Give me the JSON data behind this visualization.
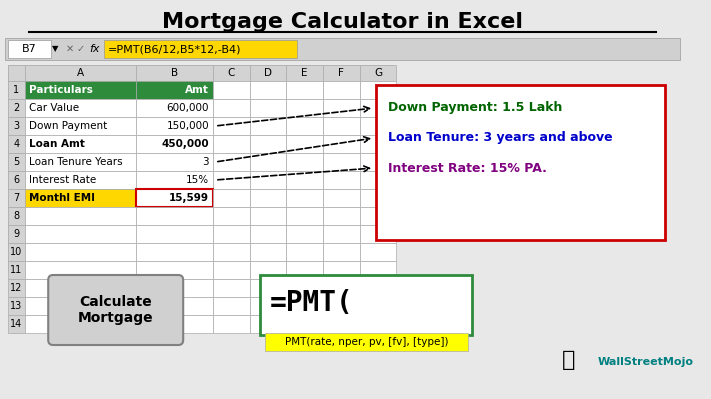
{
  "title": "Mortgage Calculator in Excel",
  "formula_bar_cell": "B7",
  "formula_bar_formula": "=PMT(B6/12,B5*12,-B4)",
  "col_headers": [
    "A",
    "B",
    "C",
    "D",
    "E",
    "F",
    "G"
  ],
  "row_labels": [
    "1",
    "2",
    "3",
    "4",
    "5",
    "6",
    "7",
    "8",
    "9",
    "10",
    "11",
    "12",
    "13",
    "14"
  ],
  "particulars": [
    "Particulars",
    "Car Value",
    "Down Payment",
    "Loan Amt",
    "Loan Tenure Years",
    "Interest Rate",
    "Monthl EMI"
  ],
  "amounts": [
    "Amt",
    "600,000",
    "150,000",
    "450,000",
    "3",
    "15%",
    "15,599"
  ],
  "bold_rows": [
    0,
    3,
    6
  ],
  "yellow_row": 6,
  "red_border_row": 6,
  "header_bg": "#2E8B3C",
  "header_text": "#FFFFFF",
  "yellow_bg": "#FFD700",
  "cell_bg": "#FFFFFF",
  "grid_color": "#AAAAAA",
  "col_header_bg": "#D3D3D3",
  "callout_box_border": "#CC0000",
  "callout_line1": "Down Payment: 1.5 Lakh",
  "callout_line2": "Loan Tenure: 3 years and above",
  "callout_line3": "Interest Rate: 15% PA.",
  "callout_color1": "#006400",
  "callout_color2": "#0000CC",
  "callout_color3": "#800080",
  "button_text": "Calculate\nMortgage",
  "pmt_formula_text": "=PMT(",
  "pmt_hint_text": "PMT(rate, nper, pv, [fv], [type])",
  "pmt_hint_bg": "#FFFF00",
  "pmt_box_border": "#2E8B3C",
  "background_color": "#E8E8E8",
  "excel_bg": "#FFFFFF"
}
